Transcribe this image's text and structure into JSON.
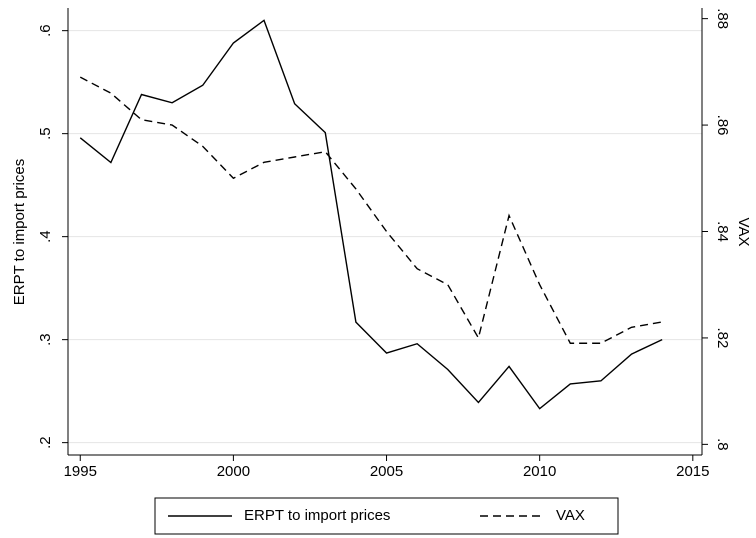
{
  "chart_data": {
    "type": "line",
    "x": [
      1995,
      1996,
      1997,
      1998,
      1999,
      2000,
      2001,
      2002,
      2003,
      2004,
      2005,
      2006,
      2007,
      2008,
      2009,
      2010,
      2011,
      2012,
      2013,
      2014
    ],
    "xlim": [
      1994.6,
      2015.3
    ],
    "xticks": [
      1995,
      2000,
      2005,
      2010,
      2015
    ],
    "ylabel": "ERPT to import prices",
    "y2label": "VAX",
    "ylim": [
      0.188,
      0.622
    ],
    "yticks": [
      {
        "value": 0.2,
        "label": ".2"
      },
      {
        "value": 0.3,
        "label": ".3"
      },
      {
        "value": 0.4,
        "label": ".4"
      },
      {
        "value": 0.5,
        "label": ".5"
      },
      {
        "value": 0.6,
        "label": ".6"
      }
    ],
    "y2lim": [
      0.798,
      0.882
    ],
    "y2ticks": [
      {
        "value": 0.8,
        "label": ".8"
      },
      {
        "value": 0.82,
        "label": ".82"
      },
      {
        "value": 0.84,
        "label": ".84"
      },
      {
        "value": 0.86,
        "label": ".86"
      },
      {
        "value": 0.88,
        "label": ".88"
      }
    ],
    "grid": true,
    "legend": "bottom",
    "series": [
      {
        "name": "ERPT to import prices",
        "color": "#000000",
        "dash": "solid",
        "values": [
          0.496,
          0.472,
          0.538,
          0.53,
          0.547,
          0.588,
          0.61,
          0.529,
          0.501,
          0.317,
          0.287,
          0.296,
          0.271,
          0.239,
          0.274,
          0.233,
          0.257,
          0.26,
          0.286,
          0.3
        ]
      },
      {
        "name": "VAX",
        "color": "#000000",
        "dash": "dashed",
        "axis": "y2",
        "values": [
          0.869,
          0.866,
          0.861,
          0.86,
          0.856,
          0.85,
          0.853,
          0.854,
          0.855,
          0.848,
          0.84,
          0.833,
          0.83,
          0.82,
          0.843,
          0.83,
          0.819,
          0.819,
          0.822,
          0.823
        ]
      }
    ]
  }
}
